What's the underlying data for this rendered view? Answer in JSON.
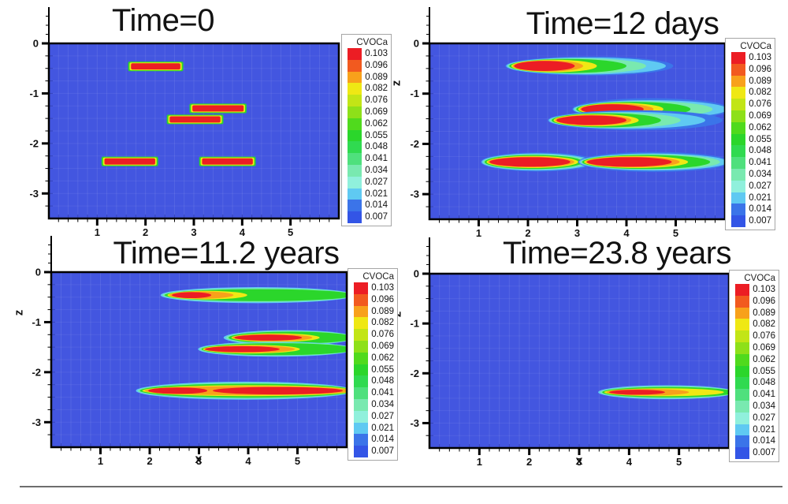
{
  "chart_data": {
    "type": "heatmap",
    "description": "Four 2-D contour plots of dissolved VOC concentration (CVOCa) in an x-z vertical cross-section at four times",
    "colorbar": {
      "title": "CVOCa",
      "levels": [
        "0.103",
        "0.096",
        "0.089",
        "0.082",
        "0.076",
        "0.069",
        "0.062",
        "0.055",
        "0.048",
        "0.041",
        "0.034",
        "0.027",
        "0.021",
        "0.014",
        "0.007"
      ],
      "colors": [
        "#EC1D24",
        "#F25A1F",
        "#F8A11B",
        "#EFE814",
        "#C2E516",
        "#8EE019",
        "#50DA1D",
        "#2BD62B",
        "#30DA50",
        "#4FE07D",
        "#79E9B0",
        "#90F0DC",
        "#5FC9F2",
        "#3B74E9",
        "#3355E6"
      ]
    },
    "axes": {
      "xlabel": "x",
      "zlabel": "z",
      "x_range": [
        0,
        6
      ],
      "z_range": [
        0,
        -3.5
      ],
      "x_major_ticks": [
        1,
        2,
        3,
        4,
        5
      ],
      "z_major_ticks": [
        0,
        -1,
        -2,
        -3
      ],
      "x_minor_step": 0.2,
      "z_minor_step": 0.25,
      "grid": true
    },
    "background_level_color": "#4356E0",
    "panels": [
      {
        "title": "Time=0",
        "show_xlabel": false,
        "show_zlabel": false,
        "plumes": [
          {
            "shape": "rect",
            "z": -0.46,
            "contours": [
              [
                0.055,
                1.64,
                2.78,
                0.19
              ],
              [
                0.082,
                1.67,
                2.75,
                0.155
              ],
              [
                0.103,
                1.7,
                2.72,
                0.125
              ]
            ]
          },
          {
            "shape": "rect",
            "z": -1.3,
            "contours": [
              [
                0.055,
                2.91,
                4.09,
                0.19
              ],
              [
                0.082,
                2.94,
                4.06,
                0.155
              ],
              [
                0.103,
                2.97,
                4.03,
                0.125
              ]
            ]
          },
          {
            "shape": "rect",
            "z": -1.52,
            "contours": [
              [
                0.055,
                2.44,
                3.61,
                0.19
              ],
              [
                0.082,
                2.47,
                3.58,
                0.155
              ],
              [
                0.103,
                2.5,
                3.55,
                0.125
              ]
            ]
          },
          {
            "shape": "rect",
            "z": -2.36,
            "contours": [
              [
                0.055,
                1.09,
                2.26,
                0.19
              ],
              [
                0.082,
                1.12,
                2.23,
                0.155
              ],
              [
                0.103,
                1.15,
                2.2,
                0.125
              ]
            ]
          },
          {
            "shape": "rect",
            "z": -2.36,
            "contours": [
              [
                0.055,
                3.11,
                4.28,
                0.19
              ],
              [
                0.082,
                3.14,
                4.25,
                0.155
              ],
              [
                0.103,
                3.17,
                4.22,
                0.125
              ]
            ]
          }
        ]
      },
      {
        "title": "Time=12 days",
        "show_xlabel": false,
        "show_zlabel": true,
        "plumes": [
          {
            "shape": "ellipse",
            "z": -0.45,
            "contours": [
              [
                0.014,
                1.54,
                4.95,
                0.38
              ],
              [
                0.021,
                1.56,
                4.8,
                0.34
              ],
              [
                0.034,
                1.59,
                4.4,
                0.31
              ],
              [
                0.055,
                1.62,
                4.0,
                0.28
              ],
              [
                0.082,
                1.66,
                3.4,
                0.25
              ],
              [
                0.089,
                1.69,
                3.12,
                0.22
              ],
              [
                0.103,
                1.72,
                2.95,
                0.2
              ]
            ]
          },
          {
            "shape": "ellipse",
            "z": -1.31,
            "contours": [
              [
                0.014,
                2.9,
                6.1,
                0.44
              ],
              [
                0.021,
                2.92,
                6.05,
                0.36
              ],
              [
                0.034,
                2.95,
                5.75,
                0.32
              ],
              [
                0.055,
                2.98,
                5.3,
                0.29
              ],
              [
                0.082,
                3.02,
                4.75,
                0.25
              ],
              [
                0.089,
                3.05,
                4.55,
                0.22
              ],
              [
                0.103,
                3.08,
                4.35,
                0.2
              ]
            ]
          },
          {
            "shape": "ellipse",
            "z": -1.53,
            "contours": [
              [
                0.014,
                2.4,
                5.95,
                0.4
              ],
              [
                0.021,
                2.42,
                5.6,
                0.34
              ],
              [
                0.034,
                2.45,
                5.1,
                0.31
              ],
              [
                0.055,
                2.48,
                4.7,
                0.28
              ],
              [
                0.082,
                2.52,
                4.25,
                0.24
              ],
              [
                0.089,
                2.55,
                4.1,
                0.21
              ],
              [
                0.103,
                2.58,
                4.0,
                0.19
              ]
            ]
          },
          {
            "shape": "ellipse",
            "z": -2.36,
            "contours": [
              [
                0.014,
                1.04,
                3.38,
                0.38
              ],
              [
                0.021,
                1.06,
                3.3,
                0.34
              ],
              [
                0.034,
                1.09,
                3.22,
                0.31
              ],
              [
                0.055,
                1.12,
                3.12,
                0.28
              ],
              [
                0.082,
                1.16,
                3.02,
                0.24
              ],
              [
                0.089,
                1.19,
                2.94,
                0.21
              ],
              [
                0.103,
                1.22,
                2.86,
                0.19
              ]
            ]
          },
          {
            "shape": "ellipse",
            "z": -2.36,
            "contours": [
              [
                0.014,
                3.02,
                6.1,
                0.4
              ],
              [
                0.021,
                3.04,
                6.05,
                0.34
              ],
              [
                0.034,
                3.07,
                5.9,
                0.31
              ],
              [
                0.055,
                3.1,
                5.7,
                0.28
              ],
              [
                0.082,
                3.14,
                5.25,
                0.24
              ],
              [
                0.089,
                3.17,
                5.08,
                0.21
              ],
              [
                0.103,
                3.2,
                4.92,
                0.19
              ]
            ]
          }
        ]
      },
      {
        "title": "Time=11.2 years",
        "show_xlabel": true,
        "show_zlabel": true,
        "plumes": [
          {
            "shape": "ellipse",
            "z": -0.46,
            "contours": [
              [
                0.021,
                2.22,
                6.15,
                0.32
              ],
              [
                0.034,
                2.26,
                6.15,
                0.28
              ],
              [
                0.055,
                2.3,
                6.15,
                0.24
              ],
              [
                0.082,
                2.36,
                3.98,
                0.17
              ],
              [
                0.089,
                2.4,
                3.7,
                0.145
              ],
              [
                0.103,
                2.45,
                3.25,
                0.12
              ]
            ]
          },
          {
            "shape": "ellipse",
            "z": -1.31,
            "contours": [
              [
                0.021,
                3.5,
                6.15,
                0.3
              ],
              [
                0.034,
                3.55,
                6.15,
                0.27
              ],
              [
                0.055,
                3.6,
                6.15,
                0.24
              ],
              [
                0.082,
                3.66,
                5.45,
                0.17
              ],
              [
                0.089,
                3.68,
                5.3,
                0.14
              ],
              [
                0.103,
                3.72,
                5.09,
                0.12
              ]
            ]
          },
          {
            "shape": "ellipse",
            "z": -1.54,
            "contours": [
              [
                0.021,
                2.98,
                6.15,
                0.3
              ],
              [
                0.034,
                3.01,
                6.15,
                0.27
              ],
              [
                0.055,
                3.05,
                6.15,
                0.24
              ],
              [
                0.082,
                3.08,
                5.05,
                0.17
              ],
              [
                0.089,
                3.1,
                4.95,
                0.14
              ],
              [
                0.103,
                3.12,
                4.64,
                0.12
              ]
            ]
          },
          {
            "shape": "ellipse",
            "z": -2.37,
            "contours": [
              [
                0.021,
                1.72,
                6.15,
                0.36
              ],
              [
                0.034,
                1.76,
                6.15,
                0.32
              ],
              [
                0.055,
                1.8,
                6.15,
                0.28
              ],
              [
                0.082,
                1.85,
                6.15,
                0.22
              ],
              [
                0.089,
                1.9,
                6.1,
                0.18
              ],
              [
                0.103,
                1.97,
                3.17,
                0.13
              ],
              [
                0.103,
                3.28,
                5.92,
                0.15
              ]
            ]
          }
        ]
      },
      {
        "title": "Time=23.8 years",
        "show_xlabel": true,
        "show_zlabel": true,
        "plumes": [
          {
            "shape": "ellipse",
            "z": -2.38,
            "contours": [
              [
                0.021,
                3.38,
                6.12,
                0.28
              ],
              [
                0.034,
                3.42,
                6.12,
                0.25
              ],
              [
                0.055,
                3.46,
                6.1,
                0.21
              ],
              [
                0.082,
                3.5,
                5.9,
                0.16
              ],
              [
                0.089,
                3.55,
                5.2,
                0.13
              ],
              [
                0.103,
                3.6,
                4.72,
                0.1
              ]
            ]
          }
        ]
      }
    ]
  }
}
